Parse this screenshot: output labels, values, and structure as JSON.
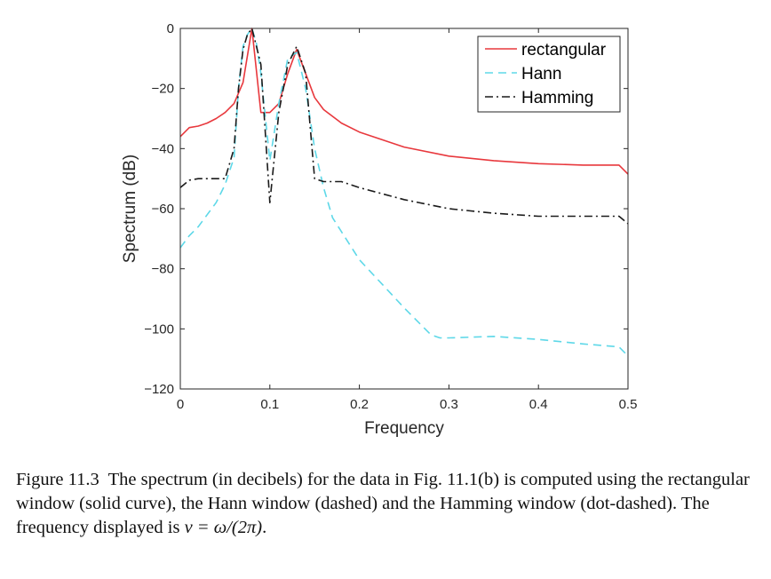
{
  "chart_data": {
    "type": "line",
    "xlabel": "Frequency",
    "ylabel": "Spectrum (dB)",
    "xlim": [
      0,
      0.5
    ],
    "ylim": [
      -120,
      0
    ],
    "xticks": [
      0,
      0.1,
      0.2,
      0.3,
      0.4,
      0.5
    ],
    "xtick_labels": [
      "0",
      "0.1",
      "0.2",
      "0.3",
      "0.4",
      "0.5"
    ],
    "yticks": [
      0,
      -20,
      -40,
      -60,
      -80,
      -100,
      -120
    ],
    "ytick_labels": [
      "0",
      "−20",
      "−40",
      "−60",
      "−80",
      "−100",
      "−120"
    ],
    "grid": false,
    "legend_position": "top-right",
    "series": [
      {
        "name": "rectangular",
        "color": "#e8383d",
        "style": "solid",
        "x": [
          0,
          0.01,
          0.02,
          0.03,
          0.04,
          0.05,
          0.06,
          0.07,
          0.08,
          0.09,
          0.1,
          0.11,
          0.12,
          0.13,
          0.14,
          0.15,
          0.16,
          0.18,
          0.2,
          0.25,
          0.3,
          0.35,
          0.4,
          0.45,
          0.49,
          0.5
        ],
        "y": [
          -36,
          -33,
          -32.5,
          -31.5,
          -30,
          -28,
          -25,
          -18,
          0,
          -28,
          -28,
          -25,
          -15,
          -7,
          -15,
          -23,
          -27,
          -31.5,
          -34.5,
          -39.5,
          -42.5,
          -44,
          -45,
          -45.5,
          -45.5,
          -48.5
        ]
      },
      {
        "name": "Hann",
        "color": "#5ed8e8",
        "style": "dashed",
        "x": [
          0,
          0.01,
          0.02,
          0.03,
          0.04,
          0.05,
          0.06,
          0.065,
          0.07,
          0.075,
          0.08,
          0.085,
          0.09,
          0.1,
          0.11,
          0.12,
          0.13,
          0.14,
          0.15,
          0.16,
          0.17,
          0.2,
          0.25,
          0.28,
          0.29,
          0.3,
          0.35,
          0.4,
          0.45,
          0.49,
          0.5
        ],
        "y": [
          -73,
          -69,
          -66,
          -62,
          -58,
          -52,
          -43,
          -20,
          -6,
          -2,
          0,
          -5,
          -15,
          -44,
          -25,
          -10,
          -8,
          -20,
          -40,
          -53,
          -63,
          -77,
          -93,
          -102,
          -103,
          -103,
          -102.5,
          -103.5,
          -105,
          -106,
          -109
        ]
      },
      {
        "name": "Hamming",
        "color": "#1a1a1a",
        "style": "dashdot",
        "x": [
          0,
          0.01,
          0.02,
          0.03,
          0.04,
          0.05,
          0.06,
          0.065,
          0.07,
          0.075,
          0.08,
          0.085,
          0.09,
          0.1,
          0.11,
          0.12,
          0.13,
          0.14,
          0.15,
          0.16,
          0.18,
          0.2,
          0.25,
          0.3,
          0.35,
          0.4,
          0.45,
          0.49,
          0.5
        ],
        "y": [
          -53,
          -50.5,
          -50,
          -50,
          -50,
          -50,
          -40,
          -20,
          -7,
          -2,
          0,
          -6,
          -12,
          -58,
          -28,
          -12,
          -6,
          -15,
          -50,
          -51,
          -51,
          -53,
          -57,
          -60,
          -61.5,
          -62.5,
          -62.5,
          -62.5,
          -65
        ]
      }
    ]
  },
  "caption": {
    "label": "Figure 11.3",
    "text": "The spectrum (in decibels) for the data in Fig. 11.1(b) is computed using the rectangular window (solid curve), the Hann window (dashed) and the Hamming window (dot-dashed). The frequency displayed is",
    "math": "ν = ω/(2π)",
    "end": "."
  }
}
